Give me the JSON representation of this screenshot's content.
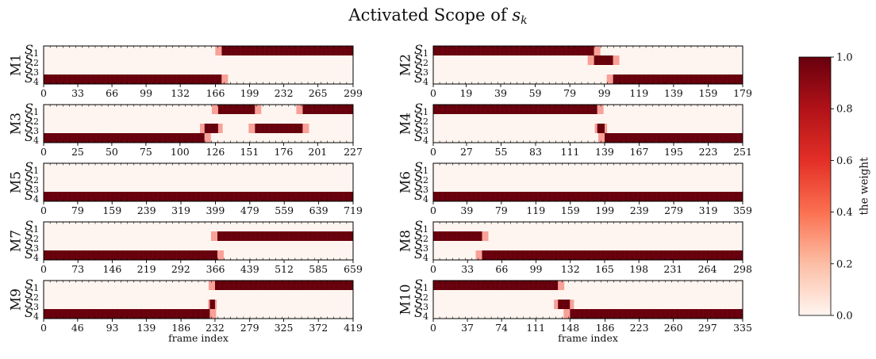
{
  "chart_data": {
    "type": "heatmap",
    "title": "Activated Scope of s_k",
    "title_parts": {
      "prefix": "Activated Scope of ",
      "var": "s",
      "sub": "k"
    },
    "row_labels": [
      "S1",
      "S2",
      "S3",
      "S4"
    ],
    "xlabel": "frame index",
    "colorscale": {
      "low": "#fff5f0",
      "high": "#67000d",
      "range": [
        0,
        1
      ]
    },
    "colorbar": {
      "label": "the weight",
      "ticks": [
        "0.0",
        "0.2",
        "0.4",
        "0.6",
        "0.8",
        "1.0"
      ]
    },
    "panels": [
      {
        "id": "M1",
        "xmax": 299,
        "xticks": [
          "0",
          "33",
          "66",
          "99",
          "132",
          "166",
          "199",
          "232",
          "265",
          "299"
        ],
        "segments": [
          [
            0,
            172,
            3
          ],
          [
            172,
            299,
            0
          ]
        ]
      },
      {
        "id": "M2",
        "xmax": 179,
        "xticks": [
          "0",
          "19",
          "39",
          "59",
          "79",
          "99",
          "119",
          "139",
          "159",
          "179"
        ],
        "segments": [
          [
            0,
            93,
            0
          ],
          [
            93,
            104,
            1
          ],
          [
            104,
            179,
            3
          ]
        ]
      },
      {
        "id": "M3",
        "xmax": 227,
        "xticks": [
          "0",
          "25",
          "50",
          "75",
          "100",
          "126",
          "151",
          "176",
          "201",
          "227"
        ],
        "segments": [
          [
            0,
            118,
            3
          ],
          [
            118,
            128,
            2
          ],
          [
            128,
            155,
            0
          ],
          [
            155,
            190,
            2
          ],
          [
            190,
            227,
            0
          ]
        ]
      },
      {
        "id": "M4",
        "xmax": 251,
        "xticks": [
          "0",
          "27",
          "55",
          "83",
          "111",
          "139",
          "167",
          "195",
          "223",
          "251"
        ],
        "segments": [
          [
            0,
            133,
            0
          ],
          [
            133,
            139,
            2
          ],
          [
            139,
            251,
            3
          ]
        ]
      },
      {
        "id": "M5",
        "xmax": 719,
        "xticks": [
          "0",
          "79",
          "159",
          "239",
          "319",
          "399",
          "479",
          "559",
          "639",
          "719"
        ],
        "segments": [
          [
            0,
            719,
            3
          ]
        ]
      },
      {
        "id": "M6",
        "xmax": 359,
        "xticks": [
          "0",
          "39",
          "79",
          "119",
          "159",
          "199",
          "239",
          "279",
          "319",
          "359"
        ],
        "segments": [
          [
            0,
            359,
            3
          ]
        ]
      },
      {
        "id": "M7",
        "xmax": 659,
        "xticks": [
          "0",
          "73",
          "146",
          "219",
          "292",
          "366",
          "439",
          "512",
          "585",
          "659"
        ],
        "segments": [
          [
            0,
            370,
            3
          ],
          [
            370,
            659,
            1
          ]
        ]
      },
      {
        "id": "M8",
        "xmax": 298,
        "xticks": [
          "0",
          "33",
          "66",
          "99",
          "132",
          "165",
          "198",
          "231",
          "264",
          "298"
        ],
        "segments": [
          [
            0,
            47,
            1
          ],
          [
            47,
            298,
            3
          ]
        ]
      },
      {
        "id": "M9",
        "xmax": 419,
        "xticks": [
          "0",
          "46",
          "93",
          "139",
          "186",
          "232",
          "279",
          "325",
          "372",
          "419"
        ],
        "segments": [
          [
            0,
            225,
            3
          ],
          [
            225,
            232,
            2
          ],
          [
            232,
            419,
            0
          ]
        ]
      },
      {
        "id": "M10",
        "xmax": 335,
        "xticks": [
          "0",
          "37",
          "74",
          "111",
          "148",
          "186",
          "223",
          "260",
          "297",
          "335"
        ],
        "segments": [
          [
            0,
            135,
            0
          ],
          [
            135,
            148,
            2
          ],
          [
            148,
            335,
            3
          ]
        ]
      }
    ]
  }
}
